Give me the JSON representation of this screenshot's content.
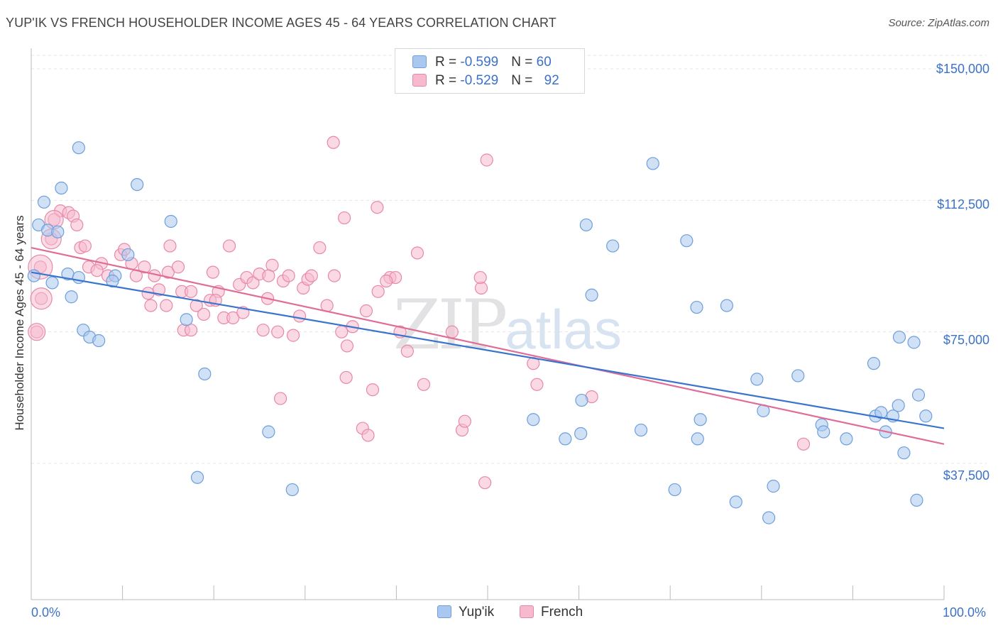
{
  "header": {
    "title": "YUP'IK VS FRENCH HOUSEHOLDER INCOME AGES 45 - 64 YEARS CORRELATION CHART",
    "source": "Source: ZipAtlas.com"
  },
  "watermark": {
    "zip": "ZIP",
    "atlas": "atlas"
  },
  "legend": {
    "rows": [
      {
        "r_label": "R = ",
        "r_value": "-0.599",
        "n_label": "N = ",
        "n_value": "60"
      },
      {
        "r_label": "R = ",
        "r_value": "-0.529",
        "n_label": "N = ",
        "n_value": "92"
      }
    ]
  },
  "bottom_legend": [
    "Yup'ik",
    "French"
  ],
  "colors": {
    "yupik_fill": "#aac8ef",
    "yupik_stroke": "#6d9fdc",
    "yupik_line": "#3a74cc",
    "french_fill": "#f6b9ce",
    "french_stroke": "#e888a8",
    "french_line": "#e06c98",
    "tick_label": "#3b72c8",
    "grid": "#e4e4e4"
  },
  "chart_data": {
    "type": "scatter",
    "title": "YUP'IK VS FRENCH HOUSEHOLDER INCOME AGES 45 - 64 YEARS CORRELATION CHART",
    "xlabel": "",
    "ylabel": "Householder Income Ages 45 - 64 years",
    "xlim": [
      0,
      100
    ],
    "ylim": [
      0,
      156000
    ],
    "x_tick_labels": [
      "0.0%",
      "100.0%"
    ],
    "y_ticks": [
      37500,
      75000,
      112500,
      150000
    ],
    "y_tick_labels": [
      "$37,500",
      "$75,000",
      "$112,500",
      "$150,000"
    ],
    "grid": true,
    "legend_position": "top-center",
    "series": [
      {
        "name": "Yup'ik",
        "r": -0.599,
        "n": 60,
        "trend": {
          "x": [
            0,
            100
          ],
          "y": [
            92000,
            47500
          ]
        },
        "points": [
          {
            "x": 5.2,
            "y": 127500
          },
          {
            "x": 11.6,
            "y": 117000
          },
          {
            "x": 3.3,
            "y": 116000
          },
          {
            "x": 1.4,
            "y": 112000
          },
          {
            "x": 15.3,
            "y": 106500
          },
          {
            "x": 0.8,
            "y": 105500
          },
          {
            "x": 1.8,
            "y": 104000
          },
          {
            "x": 2.9,
            "y": 103500
          },
          {
            "x": 10.6,
            "y": 97000
          },
          {
            "x": 0.3,
            "y": 91000
          },
          {
            "x": 4.0,
            "y": 91500
          },
          {
            "x": 5.2,
            "y": 90500
          },
          {
            "x": 9.2,
            "y": 91000
          },
          {
            "x": 2.3,
            "y": 89000
          },
          {
            "x": 8.9,
            "y": 89500
          },
          {
            "x": 4.4,
            "y": 85000
          },
          {
            "x": 17.0,
            "y": 78500
          },
          {
            "x": 5.7,
            "y": 75500
          },
          {
            "x": 6.4,
            "y": 73500
          },
          {
            "x": 7.4,
            "y": 72500
          },
          {
            "x": 19.0,
            "y": 63000
          },
          {
            "x": 18.2,
            "y": 33500
          },
          {
            "x": 26.0,
            "y": 46500
          },
          {
            "x": 28.6,
            "y": 30000
          },
          {
            "x": 60.8,
            "y": 105500
          },
          {
            "x": 63.7,
            "y": 99500
          },
          {
            "x": 61.4,
            "y": 85500
          },
          {
            "x": 68.1,
            "y": 123000
          },
          {
            "x": 71.8,
            "y": 101000
          },
          {
            "x": 72.9,
            "y": 82000
          },
          {
            "x": 76.2,
            "y": 82500
          },
          {
            "x": 55.0,
            "y": 50000
          },
          {
            "x": 58.5,
            "y": 44500
          },
          {
            "x": 60.2,
            "y": 46000
          },
          {
            "x": 60.3,
            "y": 55500
          },
          {
            "x": 66.8,
            "y": 47000
          },
          {
            "x": 73.3,
            "y": 50000
          },
          {
            "x": 73.0,
            "y": 44500
          },
          {
            "x": 70.5,
            "y": 30000
          },
          {
            "x": 77.2,
            "y": 26500
          },
          {
            "x": 79.5,
            "y": 61500
          },
          {
            "x": 80.2,
            "y": 52500
          },
          {
            "x": 81.3,
            "y": 31000
          },
          {
            "x": 80.8,
            "y": 22000
          },
          {
            "x": 84.0,
            "y": 62500
          },
          {
            "x": 86.6,
            "y": 48500
          },
          {
            "x": 86.8,
            "y": 46500
          },
          {
            "x": 89.3,
            "y": 44500
          },
          {
            "x": 92.3,
            "y": 66000
          },
          {
            "x": 92.5,
            "y": 51000
          },
          {
            "x": 93.1,
            "y": 52000
          },
          {
            "x": 93.6,
            "y": 46500
          },
          {
            "x": 94.4,
            "y": 51000
          },
          {
            "x": 95.0,
            "y": 54000
          },
          {
            "x": 96.7,
            "y": 72000
          },
          {
            "x": 95.1,
            "y": 73500
          },
          {
            "x": 97.2,
            "y": 57000
          },
          {
            "x": 95.6,
            "y": 40500
          },
          {
            "x": 98.0,
            "y": 51000
          },
          {
            "x": 97.0,
            "y": 27000
          }
        ]
      },
      {
        "name": "French",
        "r": -0.529,
        "n": 92,
        "trend": {
          "x": [
            0,
            100
          ],
          "y": [
            99000,
            43000
          ]
        },
        "points": [
          {
            "x": 33.1,
            "y": 129000
          },
          {
            "x": 49.9,
            "y": 124000
          },
          {
            "x": 37.9,
            "y": 110500
          },
          {
            "x": 34.3,
            "y": 107500
          },
          {
            "x": 3.2,
            "y": 109500
          },
          {
            "x": 4.1,
            "y": 109000
          },
          {
            "x": 2.5,
            "y": 107000
          },
          {
            "x": 4.6,
            "y": 108000
          },
          {
            "x": 5.0,
            "y": 105500
          },
          {
            "x": 2.2,
            "y": 101500
          },
          {
            "x": 1.0,
            "y": 93500
          },
          {
            "x": 1.1,
            "y": 84500
          },
          {
            "x": 0.6,
            "y": 75000
          },
          {
            "x": 5.4,
            "y": 99000
          },
          {
            "x": 5.9,
            "y": 99500
          },
          {
            "x": 7.7,
            "y": 94500
          },
          {
            "x": 6.3,
            "y": 93500
          },
          {
            "x": 7.2,
            "y": 92500
          },
          {
            "x": 8.4,
            "y": 91000
          },
          {
            "x": 9.8,
            "y": 97000
          },
          {
            "x": 10.2,
            "y": 98500
          },
          {
            "x": 11.0,
            "y": 94500
          },
          {
            "x": 11.5,
            "y": 91000
          },
          {
            "x": 12.4,
            "y": 93500
          },
          {
            "x": 13.5,
            "y": 91000
          },
          {
            "x": 12.8,
            "y": 86000
          },
          {
            "x": 14.0,
            "y": 87000
          },
          {
            "x": 13.1,
            "y": 82500
          },
          {
            "x": 15.0,
            "y": 92000
          },
          {
            "x": 15.2,
            "y": 99500
          },
          {
            "x": 16.1,
            "y": 93500
          },
          {
            "x": 14.8,
            "y": 82500
          },
          {
            "x": 16.5,
            "y": 86500
          },
          {
            "x": 17.5,
            "y": 86500
          },
          {
            "x": 16.7,
            "y": 75500
          },
          {
            "x": 17.5,
            "y": 75500
          },
          {
            "x": 18.1,
            "y": 82500
          },
          {
            "x": 18.9,
            "y": 80000
          },
          {
            "x": 19.6,
            "y": 84000
          },
          {
            "x": 19.9,
            "y": 92000
          },
          {
            "x": 20.5,
            "y": 86500
          },
          {
            "x": 21.1,
            "y": 79000
          },
          {
            "x": 21.7,
            "y": 99500
          },
          {
            "x": 22.1,
            "y": 79000
          },
          {
            "x": 22.8,
            "y": 88500
          },
          {
            "x": 23.2,
            "y": 80500
          },
          {
            "x": 23.6,
            "y": 90500
          },
          {
            "x": 24.3,
            "y": 89000
          },
          {
            "x": 25.0,
            "y": 91500
          },
          {
            "x": 25.4,
            "y": 75500
          },
          {
            "x": 25.9,
            "y": 84500
          },
          {
            "x": 26.4,
            "y": 94000
          },
          {
            "x": 27.0,
            "y": 75000
          },
          {
            "x": 27.6,
            "y": 89500
          },
          {
            "x": 28.2,
            "y": 91000
          },
          {
            "x": 28.7,
            "y": 74000
          },
          {
            "x": 29.4,
            "y": 79500
          },
          {
            "x": 29.8,
            "y": 87500
          },
          {
            "x": 30.3,
            "y": 90000
          },
          {
            "x": 30.7,
            "y": 91000
          },
          {
            "x": 31.6,
            "y": 99000
          },
          {
            "x": 32.4,
            "y": 82500
          },
          {
            "x": 33.2,
            "y": 91000
          },
          {
            "x": 34.0,
            "y": 75000
          },
          {
            "x": 34.6,
            "y": 71000
          },
          {
            "x": 35.2,
            "y": 76500
          },
          {
            "x": 36.7,
            "y": 81000
          },
          {
            "x": 37.4,
            "y": 58500
          },
          {
            "x": 38.0,
            "y": 86500
          },
          {
            "x": 39.3,
            "y": 90500
          },
          {
            "x": 40.4,
            "y": 75000
          },
          {
            "x": 41.2,
            "y": 69500
          },
          {
            "x": 42.3,
            "y": 97500
          },
          {
            "x": 43.0,
            "y": 60000
          },
          {
            "x": 39.9,
            "y": 90500
          },
          {
            "x": 27.3,
            "y": 56000
          },
          {
            "x": 34.5,
            "y": 62000
          },
          {
            "x": 36.3,
            "y": 47500
          },
          {
            "x": 36.9,
            "y": 45500
          },
          {
            "x": 46.1,
            "y": 75000
          },
          {
            "x": 47.2,
            "y": 47000
          },
          {
            "x": 47.5,
            "y": 49500
          },
          {
            "x": 49.3,
            "y": 87500
          },
          {
            "x": 49.2,
            "y": 90500
          },
          {
            "x": 49.7,
            "y": 32000
          },
          {
            "x": 55.0,
            "y": 66000
          },
          {
            "x": 55.4,
            "y": 60000
          },
          {
            "x": 61.4,
            "y": 56500
          },
          {
            "x": 84.6,
            "y": 43000
          },
          {
            "x": 38.9,
            "y": 89500
          },
          {
            "x": 26.0,
            "y": 91000
          },
          {
            "x": 20.2,
            "y": 84000
          }
        ]
      }
    ]
  }
}
